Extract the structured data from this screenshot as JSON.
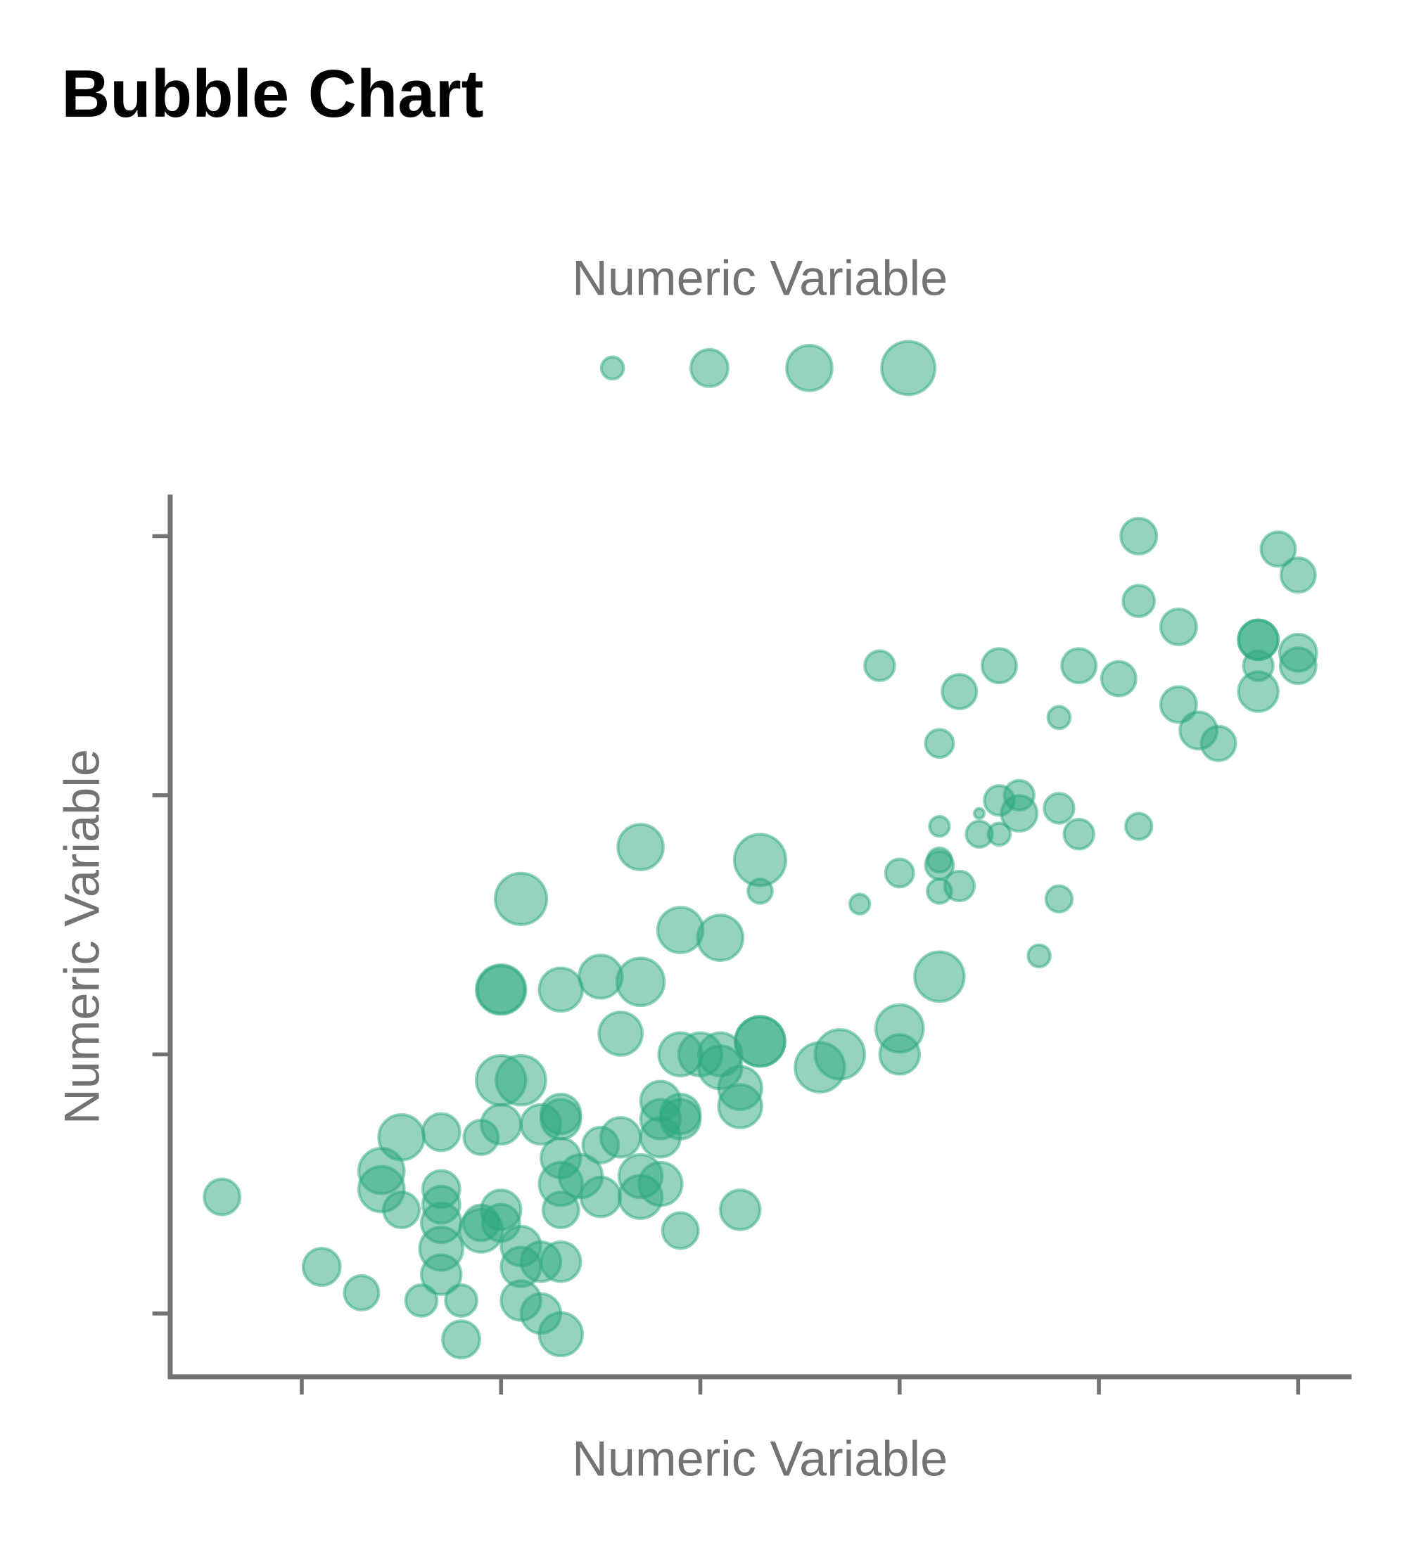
{
  "chart_data": {
    "type": "scatter",
    "subtype": "bubble",
    "title": "Bubble Chart",
    "xlabel": "Numeric Variable",
    "ylabel": "Numeric Variable",
    "size_legend_title": "Numeric Variable",
    "size_legend_values": [
      5,
      14,
      21,
      29
    ],
    "legend_position": "top",
    "x_ticks": [
      1,
      2,
      3,
      4,
      5,
      6
    ],
    "y_ticks": [
      1,
      2,
      3,
      4
    ],
    "tick_labels_shown": false,
    "xlim": [
      0.35,
      6.25
    ],
    "ylim": [
      0.75,
      4.15
    ],
    "grid": false,
    "color": "#2ca87f",
    "points": [
      [
        5.2,
        4.0,
        13
      ],
      [
        5.9,
        3.95,
        12
      ],
      [
        6.0,
        3.85,
        12
      ],
      [
        5.2,
        3.75,
        10
      ],
      [
        5.4,
        3.65,
        13
      ],
      [
        5.8,
        3.6,
        16
      ],
      [
        5.8,
        3.6,
        16
      ],
      [
        6.0,
        3.55,
        14
      ],
      [
        5.8,
        3.5,
        9
      ],
      [
        6.0,
        3.5,
        13
      ],
      [
        3.9,
        3.5,
        9
      ],
      [
        4.5,
        3.5,
        12
      ],
      [
        4.9,
        3.5,
        12
      ],
      [
        5.1,
        3.45,
        12
      ],
      [
        4.3,
        3.4,
        12
      ],
      [
        5.8,
        3.4,
        16
      ],
      [
        5.4,
        3.35,
        13
      ],
      [
        4.8,
        3.3,
        5
      ],
      [
        5.5,
        3.25,
        14
      ],
      [
        5.6,
        3.2,
        12
      ],
      [
        4.2,
        3.2,
        8
      ],
      [
        4.5,
        2.98,
        9
      ],
      [
        4.6,
        3.0,
        9
      ],
      [
        4.6,
        2.93,
        13
      ],
      [
        4.8,
        2.95,
        9
      ],
      [
        4.4,
        2.93,
        1
      ],
      [
        4.2,
        2.88,
        4
      ],
      [
        5.2,
        2.88,
        7
      ],
      [
        4.4,
        2.85,
        7
      ],
      [
        4.5,
        2.85,
        5
      ],
      [
        4.9,
        2.85,
        9
      ],
      [
        4.2,
        2.75,
        6
      ],
      [
        4.2,
        2.73,
        8
      ],
      [
        4.0,
        2.7,
        8
      ],
      [
        4.3,
        2.65,
        9
      ],
      [
        4.2,
        2.63,
        6
      ],
      [
        4.8,
        2.6,
        7
      ],
      [
        3.8,
        2.58,
        4
      ],
      [
        4.7,
        2.38,
        5
      ],
      [
        4.2,
        2.3,
        25
      ],
      [
        2.7,
        2.8,
        21
      ],
      [
        3.3,
        2.75,
        27
      ],
      [
        3.3,
        2.63,
        6
      ],
      [
        2.1,
        2.6,
        27
      ],
      [
        2.9,
        2.48,
        21
      ],
      [
        3.1,
        2.45,
        21
      ],
      [
        2.0,
        2.25,
        25
      ],
      [
        2.0,
        2.25,
        23
      ],
      [
        2.3,
        2.25,
        19
      ],
      [
        2.5,
        2.3,
        19
      ],
      [
        2.7,
        2.28,
        23
      ],
      [
        2.6,
        2.08,
        19
      ],
      [
        4.0,
        2.1,
        23
      ],
      [
        4.0,
        2.0,
        16
      ],
      [
        3.7,
        2.0,
        25
      ],
      [
        3.6,
        1.95,
        25
      ],
      [
        3.3,
        2.05,
        25
      ],
      [
        3.3,
        2.05,
        25
      ],
      [
        3.1,
        2.0,
        19
      ],
      [
        3.0,
        2.0,
        19
      ],
      [
        2.9,
        2.0,
        19
      ],
      [
        3.1,
        1.95,
        19
      ],
      [
        3.2,
        1.87,
        19
      ],
      [
        3.2,
        1.8,
        19
      ],
      [
        2.0,
        1.9,
        25
      ],
      [
        2.1,
        1.9,
        25
      ],
      [
        2.0,
        1.73,
        16
      ],
      [
        1.7,
        1.7,
        14
      ],
      [
        1.9,
        1.68,
        12
      ],
      [
        1.5,
        1.68,
        21
      ],
      [
        2.3,
        1.77,
        16
      ],
      [
        2.3,
        1.75,
        16
      ],
      [
        2.2,
        1.73,
        16
      ],
      [
        2.8,
        1.82,
        16
      ],
      [
        2.9,
        1.77,
        16
      ],
      [
        2.8,
        1.75,
        16
      ],
      [
        2.9,
        1.75,
        16
      ],
      [
        2.6,
        1.68,
        16
      ],
      [
        2.5,
        1.65,
        13
      ],
      [
        2.8,
        1.68,
        16
      ],
      [
        2.3,
        1.6,
        16
      ],
      [
        2.4,
        1.53,
        19
      ],
      [
        2.3,
        1.5,
        19
      ],
      [
        2.7,
        1.53,
        19
      ],
      [
        2.8,
        1.5,
        19
      ],
      [
        2.7,
        1.45,
        19
      ],
      [
        2.5,
        1.45,
        16
      ],
      [
        1.4,
        1.55,
        21
      ],
      [
        1.4,
        1.48,
        21
      ],
      [
        1.5,
        1.4,
        13
      ],
      [
        1.7,
        1.48,
        14
      ],
      [
        1.7,
        1.42,
        14
      ],
      [
        1.7,
        1.35,
        16
      ],
      [
        1.9,
        1.35,
        13
      ],
      [
        2.0,
        1.4,
        16
      ],
      [
        1.9,
        1.32,
        19
      ],
      [
        2.0,
        1.35,
        14
      ],
      [
        2.1,
        1.26,
        16
      ],
      [
        2.1,
        1.18,
        16
      ],
      [
        2.2,
        1.2,
        16
      ],
      [
        2.3,
        1.4,
        13
      ],
      [
        2.3,
        1.2,
        16
      ],
      [
        1.7,
        1.25,
        19
      ],
      [
        1.7,
        1.15,
        16
      ],
      [
        2.9,
        1.32,
        13
      ],
      [
        3.2,
        1.4,
        16
      ],
      [
        0.6,
        1.45,
        13
      ],
      [
        1.1,
        1.18,
        14
      ],
      [
        1.3,
        1.08,
        12
      ],
      [
        1.6,
        1.05,
        10
      ],
      [
        1.8,
        1.05,
        10
      ],
      [
        2.1,
        1.05,
        16
      ],
      [
        2.2,
        1.0,
        16
      ],
      [
        2.3,
        0.92,
        19
      ],
      [
        1.8,
        0.9,
        14
      ]
    ]
  }
}
